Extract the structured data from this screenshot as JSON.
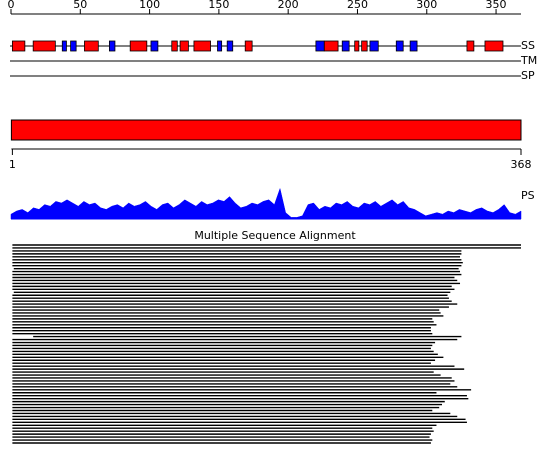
{
  "axis": {
    "range": [
      0,
      368
    ],
    "ticks": [
      0,
      50,
      100,
      150,
      200,
      250,
      300,
      350
    ]
  },
  "tracks": [
    {
      "label": "SS",
      "helices": [
        [
          1,
          10
        ],
        [
          16,
          32
        ],
        [
          53,
          63
        ],
        [
          86,
          98
        ],
        [
          116,
          120
        ],
        [
          122,
          128
        ],
        [
          132,
          144
        ],
        [
          169,
          174
        ],
        [
          226,
          236
        ],
        [
          248,
          251
        ],
        [
          253,
          257
        ],
        [
          329,
          334
        ],
        [
          342,
          355
        ]
      ],
      "strands": [
        [
          37,
          40
        ],
        [
          43,
          47
        ],
        [
          71,
          75
        ],
        [
          101,
          106
        ],
        [
          149,
          152
        ],
        [
          156,
          160
        ],
        [
          220,
          226
        ],
        [
          239,
          244
        ],
        [
          259,
          265
        ],
        [
          278,
          283
        ],
        [
          288,
          293
        ]
      ],
      "helix_color": "#ff0000",
      "strand_color": "#0000ff"
    },
    {
      "label": "TM"
    },
    {
      "label": "SP"
    }
  ],
  "domain_bar": {
    "start": 1,
    "end": 368,
    "color": "#ff0000"
  },
  "conservation": {
    "label": "PS",
    "color": "#0000ff",
    "ylim": [
      0,
      1
    ],
    "values": [
      0.15,
      0.25,
      0.3,
      0.2,
      0.35,
      0.3,
      0.45,
      0.4,
      0.55,
      0.5,
      0.6,
      0.5,
      0.4,
      0.55,
      0.45,
      0.5,
      0.35,
      0.3,
      0.4,
      0.45,
      0.35,
      0.5,
      0.4,
      0.45,
      0.55,
      0.4,
      0.3,
      0.45,
      0.5,
      0.35,
      0.45,
      0.6,
      0.5,
      0.4,
      0.55,
      0.45,
      0.5,
      0.6,
      0.55,
      0.7,
      0.5,
      0.35,
      0.4,
      0.5,
      0.45,
      0.55,
      0.6,
      0.45,
      0.95,
      0.2,
      0.05,
      0.05,
      0.1,
      0.45,
      0.5,
      0.3,
      0.4,
      0.35,
      0.5,
      0.45,
      0.55,
      0.4,
      0.35,
      0.5,
      0.45,
      0.55,
      0.4,
      0.5,
      0.6,
      0.45,
      0.55,
      0.35,
      0.3,
      0.2,
      0.1,
      0.15,
      0.2,
      0.15,
      0.25,
      0.2,
      0.3,
      0.25,
      0.2,
      0.3,
      0.35,
      0.25,
      0.2,
      0.3,
      0.45,
      0.2,
      0.15,
      0.25
    ]
  },
  "alignment": {
    "title": "Multiple Sequence Alignment",
    "hits": [
      [
        1,
        368
      ],
      [
        1,
        368
      ],
      [
        1,
        325
      ],
      [
        1,
        325
      ],
      [
        1,
        324
      ],
      [
        1,
        325
      ],
      [
        1,
        326
      ],
      [
        1,
        325
      ],
      [
        2,
        323
      ],
      [
        1,
        324
      ],
      [
        1,
        325
      ],
      [
        1,
        320
      ],
      [
        1,
        322
      ],
      [
        1,
        324
      ],
      [
        1,
        318
      ],
      [
        1,
        320
      ],
      [
        2,
        317
      ],
      [
        1,
        315
      ],
      [
        1,
        316
      ],
      [
        1,
        318
      ],
      [
        1,
        322
      ],
      [
        1,
        316
      ],
      [
        1,
        309
      ],
      [
        1,
        310
      ],
      [
        1,
        312
      ],
      [
        1,
        304
      ],
      [
        1,
        305
      ],
      [
        1,
        307
      ],
      [
        1,
        303
      ],
      [
        1,
        303
      ],
      [
        1,
        304
      ],
      [
        16,
        325
      ],
      [
        1,
        322
      ],
      [
        1,
        306
      ],
      [
        1,
        304
      ],
      [
        1,
        303
      ],
      [
        1,
        305
      ],
      [
        1,
        308
      ],
      [
        1,
        312
      ],
      [
        1,
        306
      ],
      [
        1,
        303
      ],
      [
        1,
        320
      ],
      [
        1,
        327
      ],
      [
        1,
        305
      ],
      [
        1,
        310
      ],
      [
        1,
        318
      ],
      [
        1,
        320
      ],
      [
        1,
        317
      ],
      [
        1,
        322
      ],
      [
        1,
        332
      ],
      [
        1,
        307
      ],
      [
        1,
        329
      ],
      [
        1,
        330
      ],
      [
        1,
        313
      ],
      [
        1,
        311
      ],
      [
        1,
        309
      ],
      [
        1,
        304
      ],
      [
        1,
        317
      ],
      [
        1,
        322
      ],
      [
        1,
        328
      ],
      [
        1,
        329
      ],
      [
        1,
        307
      ],
      [
        1,
        304
      ],
      [
        1,
        305
      ],
      [
        1,
        303
      ],
      [
        1,
        302
      ],
      [
        1,
        304
      ],
      [
        1,
        303
      ]
    ]
  }
}
